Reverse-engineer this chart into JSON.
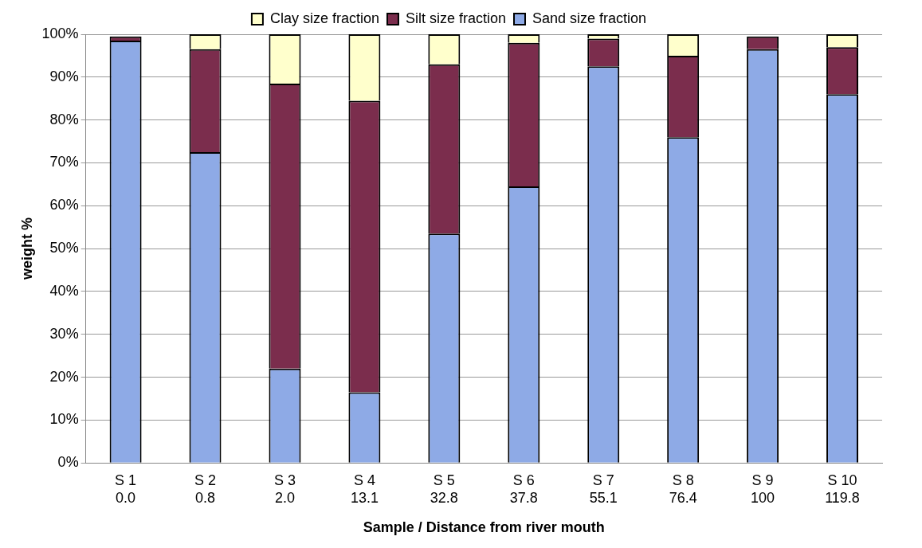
{
  "chart_data": {
    "type": "bar",
    "stacked": true,
    "xlabel": "Sample / Distance from river mouth",
    "ylabel": "weight %",
    "categories": [
      "S 1\n0.0",
      "S 2\n0.8",
      "S 3\n2.0",
      "S 4\n13.1",
      "S 5\n32.8",
      "S 6\n37.8",
      "S 7\n55.1",
      "S 8\n76.4",
      "S 9\n100",
      "S 10\n119.8"
    ],
    "series": [
      {
        "name": "Sand size fraction",
        "color": "#8eaae6",
        "values": [
          98.5,
          72.5,
          22,
          16.5,
          53.5,
          64.5,
          92.5,
          76,
          96.5,
          86
        ]
      },
      {
        "name": "Silt size fraction",
        "color": "#7b2d4d",
        "values": [
          1,
          24,
          66.5,
          68,
          39.5,
          33.5,
          6.5,
          19,
          3,
          11
        ]
      },
      {
        "name": "Clay size fraction",
        "color": "#ffffcc",
        "values": [
          null,
          3.5,
          11.5,
          15.5,
          7,
          2,
          1,
          5,
          null,
          3
        ]
      }
    ],
    "ylim": [
      0,
      100
    ],
    "yticks": [
      {
        "value": 0,
        "label": "0%"
      },
      {
        "value": 10,
        "label": "10%"
      },
      {
        "value": 20,
        "label": "20%"
      },
      {
        "value": 30,
        "label": "30%"
      },
      {
        "value": 40,
        "label": "40%"
      },
      {
        "value": 50,
        "label": "50%"
      },
      {
        "value": 60,
        "label": "60%"
      },
      {
        "value": 70,
        "label": "70%"
      },
      {
        "value": 80,
        "label": "80%"
      },
      {
        "value": 90,
        "label": "90%"
      },
      {
        "value": 100,
        "label": "100%"
      }
    ],
    "grid": "y",
    "legend": "top"
  }
}
